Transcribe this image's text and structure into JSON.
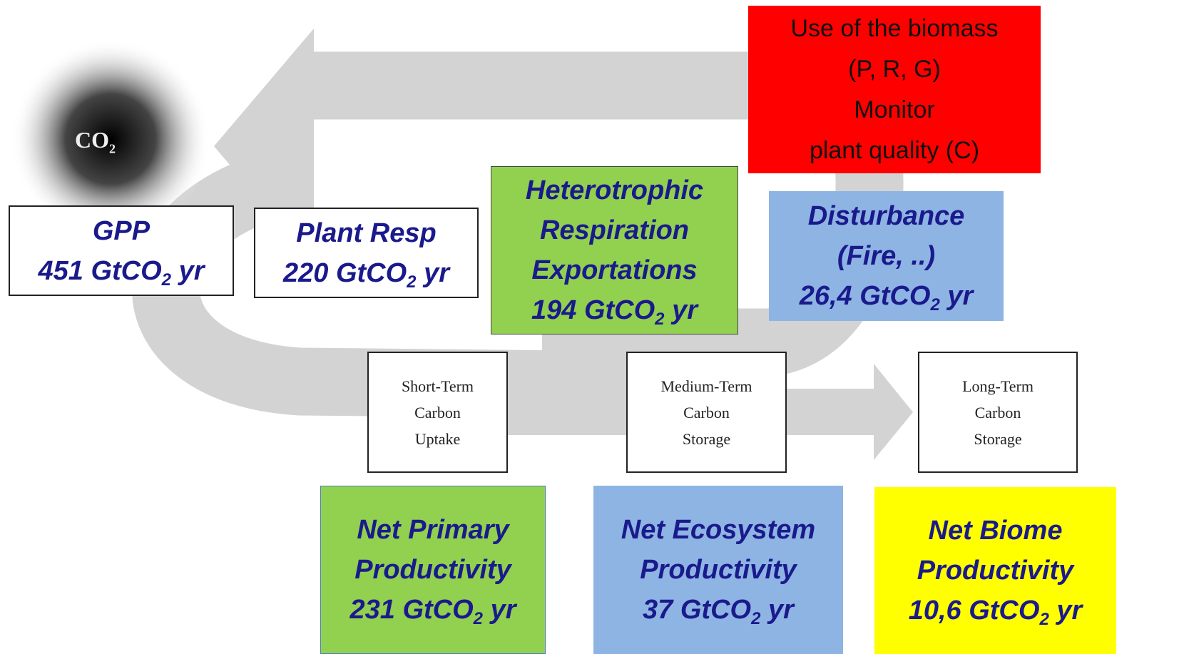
{
  "co2_label": {
    "text": "CO",
    "sub": "2"
  },
  "note_box": {
    "lines": [
      "Use of the biomass",
      "(P, R, G)",
      "Monitor",
      "plant quality (C)"
    ]
  },
  "flux_boxes": [
    {
      "lines": [
        "GPP"
      ],
      "amount": {
        "text": "451 GtCO",
        "sub": "2",
        "unit": "yr"
      }
    },
    {
      "lines": [
        "Plant Resp"
      ],
      "amount": {
        "text": "220 GtCO",
        "sub": "2",
        "unit": "yr"
      }
    },
    {
      "lines": [
        "Heterotrophic",
        "Respiration",
        "Exportations"
      ],
      "amount": {
        "text": "194 GtCO",
        "sub": "2",
        "unit": "yr"
      }
    },
    {
      "lines": [
        "Disturbance",
        "(Fire, ..)"
      ],
      "amount": {
        "text": "26,4 GtCO",
        "sub": "2",
        "unit": "yr"
      }
    },
    {
      "lines": [
        "Net Primary",
        "Productivity"
      ],
      "amount": {
        "text": "231 GtCO",
        "sub": "2",
        "unit": "yr"
      }
    },
    {
      "lines": [
        "Net Ecosystem",
        "Productivity"
      ],
      "amount": {
        "text": "37 GtCO",
        "sub": "2",
        "unit": "yr"
      }
    },
    {
      "lines": [
        "Net Biome",
        "Productivity"
      ],
      "amount": {
        "text": "10,6 GtCO",
        "sub": "2",
        "unit": "yr"
      }
    }
  ],
  "pool_boxes": [
    {
      "lines": [
        "Short-Term",
        "Carbon",
        "Uptake"
      ]
    },
    {
      "lines": [
        "Medium-Term",
        "Carbon",
        "Storage"
      ]
    },
    {
      "lines": [
        "Long-Term",
        "Carbon",
        "Storage"
      ]
    }
  ]
}
